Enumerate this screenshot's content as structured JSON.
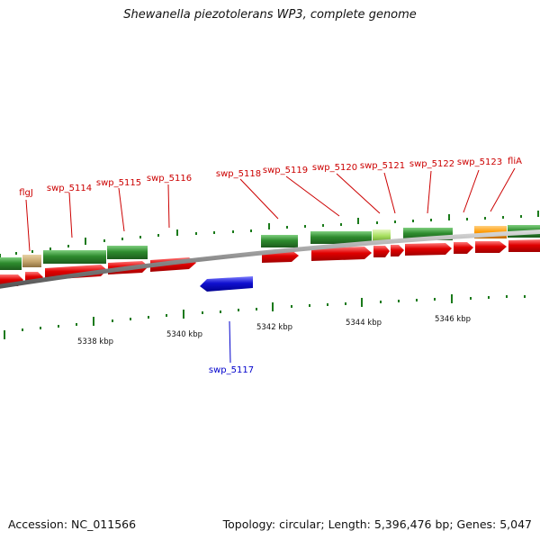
{
  "title": "Shewanella piezotolerans WP3, complete genome",
  "footer": {
    "accession": "Accession: NC_011566",
    "topology": "Topology: circular; Length: 5,396,476 bp; Genes: 5,047"
  },
  "scale_labels": [
    "5338 kbp",
    "5340 kbp",
    "5342 kbp",
    "5344 kbp",
    "5346 kbp"
  ],
  "gene_labels": [
    "flgJ",
    "swp_5114",
    "swp_5115",
    "swp_5116",
    "swp_5118",
    "swp_5119",
    "swp_5120",
    "swp_5121",
    "swp_5122",
    "swp_5123",
    "fliA",
    "swp_5117"
  ],
  "colors": {
    "forward_cds": "#e00000",
    "gene_track": "#2e8b2e",
    "reverse_cds": "#1010d0",
    "rna_light_green": "#a8e060",
    "tan_feature": "#c8a870",
    "orange_feature": "#ff9900",
    "backbone": "#8c8c8c",
    "tick": "#1a7a1a",
    "forward_label": "#cc0000",
    "reverse_label": "#0000cc"
  }
}
